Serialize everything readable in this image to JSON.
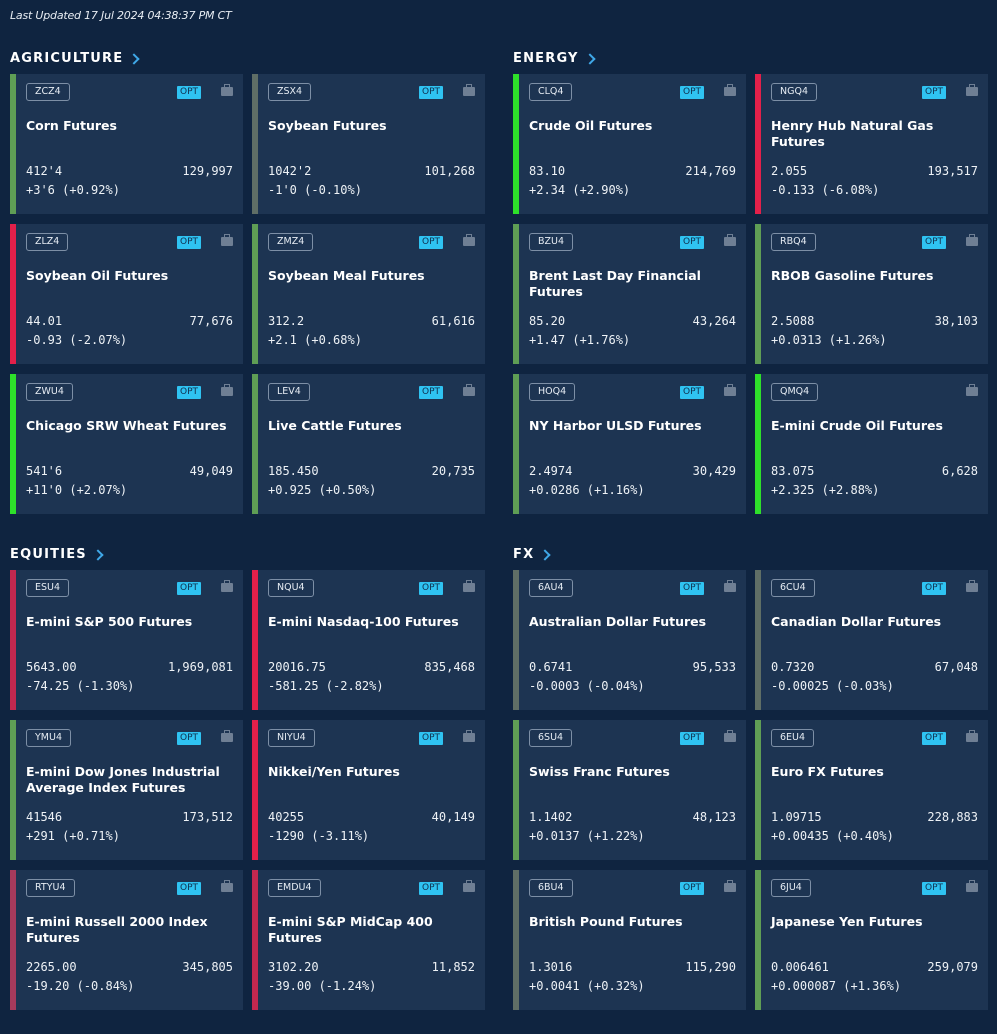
{
  "last_updated": "Last Updated 17 Jul 2024 04:38:37 PM CT",
  "sections": [
    {
      "title": "AGRICULTURE",
      "cards": [
        {
          "symbol": "ZCZ4",
          "opt": "OPT",
          "name": "Corn Futures",
          "last": "412'4",
          "volume": "129,997",
          "change": "+3'6 (+0.92%)",
          "trend": "up"
        },
        {
          "symbol": "ZSX4",
          "opt": "OPT",
          "name": "Soybean Futures",
          "last": "1042'2",
          "volume": "101,268",
          "change": "-1'0 (-0.10%)",
          "trend": "flat"
        },
        {
          "symbol": "ZLZ4",
          "opt": "OPT",
          "name": "Soybean Oil Futures",
          "last": "44.01",
          "volume": "77,676",
          "change": "-0.93 (-2.07%)",
          "trend": "down"
        },
        {
          "symbol": "ZMZ4",
          "opt": "OPT",
          "name": "Soybean Meal Futures",
          "last": "312.2",
          "volume": "61,616",
          "change": "+2.1 (+0.68%)",
          "trend": "up"
        },
        {
          "symbol": "ZWU4",
          "opt": "OPT",
          "name": "Chicago SRW Wheat Futures",
          "last": "541'6",
          "volume": "49,049",
          "change": "+11'0 (+2.07%)",
          "trend": "up-strong"
        },
        {
          "symbol": "LEV4",
          "opt": "OPT",
          "name": "Live Cattle Futures",
          "last": "185.450",
          "volume": "20,735",
          "change": "+0.925 (+0.50%)",
          "trend": "up"
        }
      ]
    },
    {
      "title": "ENERGY",
      "cards": [
        {
          "symbol": "CLQ4",
          "opt": "OPT",
          "name": "Crude Oil Futures",
          "last": "83.10",
          "volume": "214,769",
          "change": "+2.34 (+2.90%)",
          "trend": "up-strong"
        },
        {
          "symbol": "NGQ4",
          "opt": "OPT",
          "name": "Henry Hub Natural Gas Futures",
          "last": "2.055",
          "volume": "193,517",
          "change": "-0.133 (-6.08%)",
          "trend": "down"
        },
        {
          "symbol": "BZU4",
          "opt": "OPT",
          "name": "Brent Last Day Financial Futures",
          "last": "85.20",
          "volume": "43,264",
          "change": "+1.47 (+1.76%)",
          "trend": "up"
        },
        {
          "symbol": "RBQ4",
          "opt": "OPT",
          "name": "RBOB Gasoline Futures",
          "last": "2.5088",
          "volume": "38,103",
          "change": "+0.0313 (+1.26%)",
          "trend": "up"
        },
        {
          "symbol": "HOQ4",
          "opt": "OPT",
          "name": "NY Harbor ULSD Futures",
          "last": "2.4974",
          "volume": "30,429",
          "change": "+0.0286 (+1.16%)",
          "trend": "up"
        },
        {
          "symbol": "QMQ4",
          "opt": "",
          "name": "E-mini Crude Oil Futures",
          "last": "83.075",
          "volume": "6,628",
          "change": "+2.325 (+2.88%)",
          "trend": "up-strong"
        }
      ]
    },
    {
      "title": "EQUITIES",
      "cards": [
        {
          "symbol": "ESU4",
          "opt": "OPT",
          "name": "E-mini S&P 500 Futures",
          "last": "5643.00",
          "volume": "1,969,081",
          "change": "-74.25 (-1.30%)",
          "trend": "down-mid"
        },
        {
          "symbol": "NQU4",
          "opt": "OPT",
          "name": "E-mini Nasdaq-100 Futures",
          "last": "20016.75",
          "volume": "835,468",
          "change": "-581.25 (-2.82%)",
          "trend": "down"
        },
        {
          "symbol": "YMU4",
          "opt": "OPT",
          "name": "E-mini Dow Jones Industrial Average Index Futures",
          "last": "41546",
          "volume": "173,512",
          "change": "+291 (+0.71%)",
          "trend": "up"
        },
        {
          "symbol": "NIYU4",
          "opt": "OPT",
          "name": "Nikkei/Yen Futures",
          "last": "40255",
          "volume": "40,149",
          "change": "-1290 (-3.11%)",
          "trend": "down"
        },
        {
          "symbol": "RTYU4",
          "opt": "OPT",
          "name": "E-mini  Russell 2000 Index Futures",
          "last": "2265.00",
          "volume": "345,805",
          "change": "-19.20 (-0.84%)",
          "trend": "down-soft"
        },
        {
          "symbol": "EMDU4",
          "opt": "OPT",
          "name": "E-mini S&P MidCap 400 Futures",
          "last": "3102.20",
          "volume": "11,852",
          "change": "-39.00 (-1.24%)",
          "trend": "down-mid"
        }
      ]
    },
    {
      "title": "FX",
      "cards": [
        {
          "symbol": "6AU4",
          "opt": "OPT",
          "name": "Australian Dollar Futures",
          "last": "0.6741",
          "volume": "95,533",
          "change": "-0.0003 (-0.04%)",
          "trend": "flat"
        },
        {
          "symbol": "6CU4",
          "opt": "OPT",
          "name": "Canadian Dollar Futures",
          "last": "0.7320",
          "volume": "67,048",
          "change": "-0.00025 (-0.03%)",
          "trend": "flat"
        },
        {
          "symbol": "6SU4",
          "opt": "OPT",
          "name": "Swiss Franc Futures",
          "last": "1.1402",
          "volume": "48,123",
          "change": "+0.0137 (+1.22%)",
          "trend": "up"
        },
        {
          "symbol": "6EU4",
          "opt": "OPT",
          "name": "Euro FX Futures",
          "last": "1.09715",
          "volume": "228,883",
          "change": "+0.00435 (+0.40%)",
          "trend": "up"
        },
        {
          "symbol": "6BU4",
          "opt": "OPT",
          "name": "British Pound Futures",
          "last": "1.3016",
          "volume": "115,290",
          "change": "+0.0041 (+0.32%)",
          "trend": "flat"
        },
        {
          "symbol": "6JU4",
          "opt": "OPT",
          "name": "Japanese Yen Futures",
          "last": "0.006461",
          "volume": "259,079",
          "change": "+0.000087 (+1.36%)",
          "trend": "up"
        }
      ]
    }
  ]
}
